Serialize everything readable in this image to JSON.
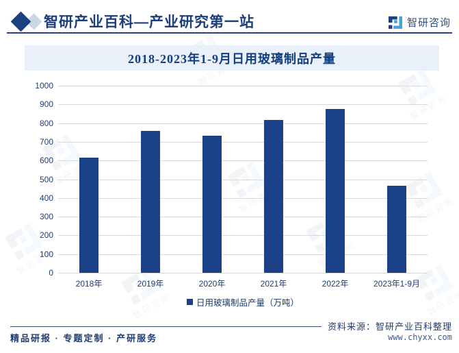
{
  "header": {
    "title": "智研产业百科—产业研究第一站",
    "logo_text": "智研咨询"
  },
  "chart_data": {
    "type": "bar",
    "title": "2018-2023年1-9月日用玻璃制品产量",
    "categories": [
      "2018年",
      "2019年",
      "2020年",
      "2021年",
      "2022年",
      "2023年1-9月"
    ],
    "values": [
      615,
      760,
      732,
      816,
      876,
      466
    ],
    "legend": "日用玻璃制品产量（万吨）",
    "xlabel": "",
    "ylabel": "",
    "ylim": [
      0,
      1000
    ],
    "ytick_step": 100,
    "grid": true,
    "legend_position": "bottom"
  },
  "footer": {
    "services": "精品研报 · 专题定制 · 产研服务",
    "source": "资料来源：智研产业百科整理",
    "url": "www.chyxx.com"
  },
  "watermark": {
    "text": "智研咨询"
  },
  "colors": {
    "accent": "#1a4186",
    "header_rule": "#26437e",
    "banner_bg": "#eaf0f9",
    "grid": "#d9d9d9",
    "text": "#1e3c74",
    "logo_light_blue": "#4aa3d8"
  }
}
